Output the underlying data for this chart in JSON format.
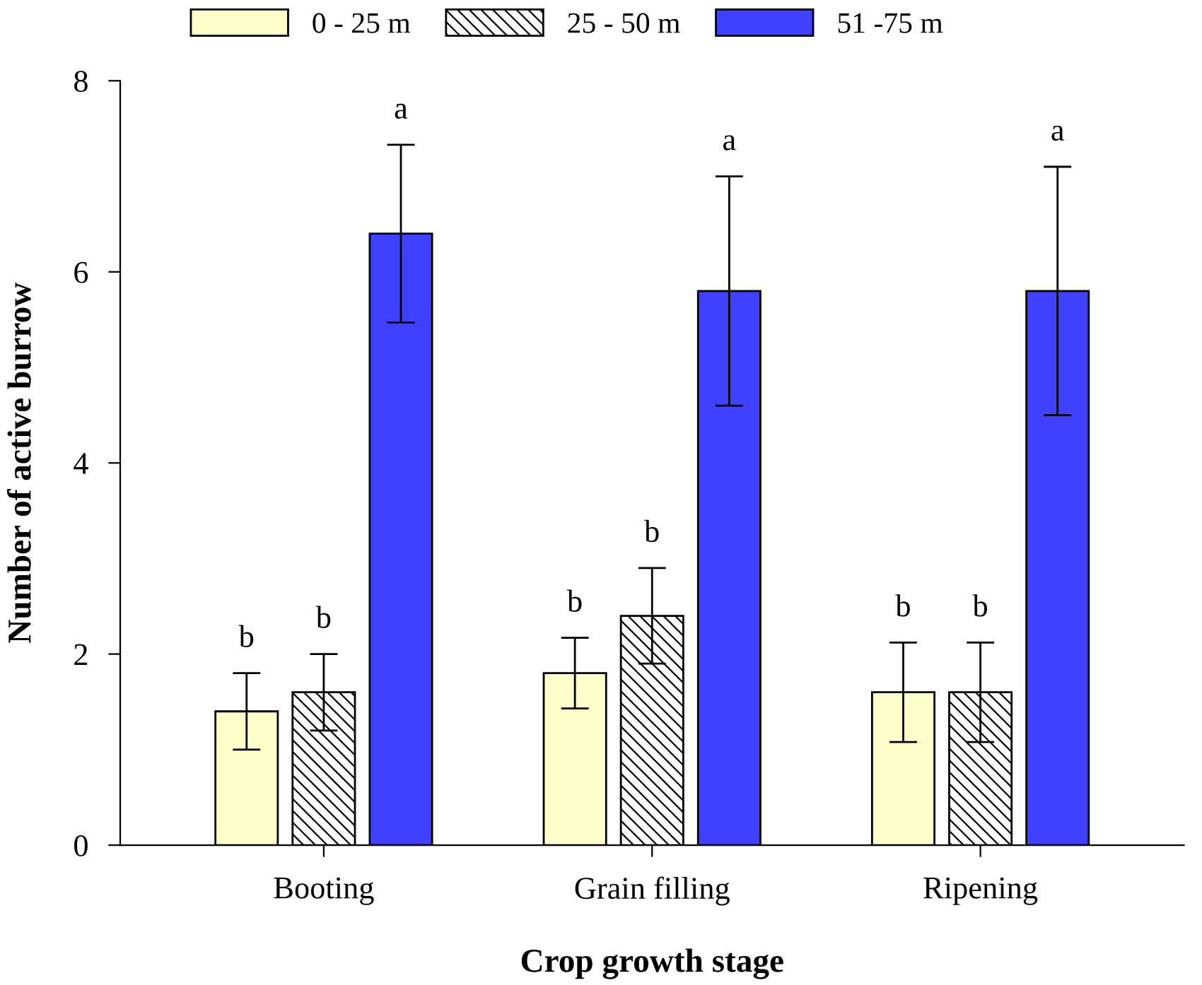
{
  "chart_data": {
    "type": "bar",
    "xlabel": "Crop growth stage",
    "ylabel": "Number of active burrow",
    "categories": [
      "Booting",
      "Grain filling",
      "Ripening"
    ],
    "series": [
      {
        "name": "0 - 25 m",
        "color": "#ffffcc",
        "values": [
          1.4,
          1.8,
          1.6
        ],
        "errors": [
          0.4,
          0.37,
          0.52
        ]
      },
      {
        "name": "25 - 50 m",
        "color": "#000000",
        "values": [
          1.6,
          2.4,
          1.6
        ],
        "errors": [
          0.4,
          0.5,
          0.52
        ]
      },
      {
        "name": "51 -75 m",
        "color": "#4040ff",
        "values": [
          6.4,
          5.8,
          5.8
        ],
        "errors": [
          0.93,
          1.2,
          1.3
        ]
      }
    ],
    "ylim": [
      0,
      8
    ],
    "yticks": [
      0,
      2,
      4,
      6,
      8
    ],
    "grid": false,
    "legend": "top",
    "annotations": [
      "b",
      "b",
      "a",
      "b",
      "b",
      "a",
      "b",
      "b",
      "a"
    ]
  }
}
